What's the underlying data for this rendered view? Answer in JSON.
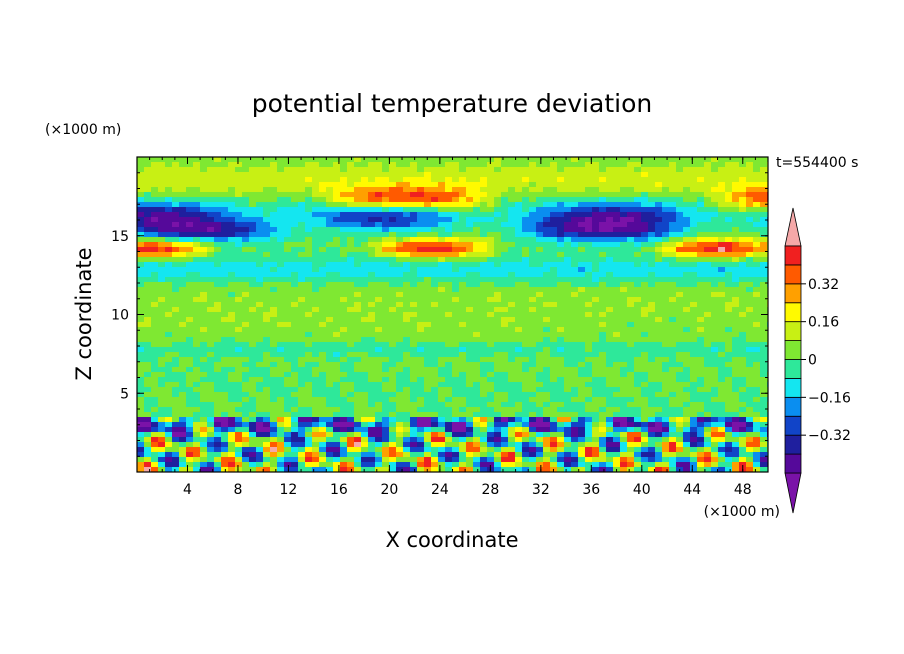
{
  "chart_data": {
    "type": "heatmap",
    "title": "potential temperature deviation",
    "xlabel": "X coordinate",
    "ylabel": "Z coordinate",
    "x_unit": "(×1000 m)",
    "y_unit": "(×1000 m)",
    "time_label": "t=554400 s",
    "xlim": [
      0,
      50
    ],
    "ylim": [
      0,
      20
    ],
    "x_ticks": [
      "4",
      "8",
      "12",
      "16",
      "20",
      "24",
      "28",
      "32",
      "36",
      "40",
      "44",
      "48"
    ],
    "x_tick_values": [
      4,
      8,
      12,
      16,
      20,
      24,
      28,
      32,
      36,
      40,
      44,
      48
    ],
    "y_ticks": [
      "5",
      "10",
      "15"
    ],
    "y_tick_values": [
      5,
      10,
      15
    ],
    "colorbar": {
      "levels": [
        -0.48,
        -0.4,
        -0.32,
        -0.24,
        -0.16,
        -0.08,
        0,
        0.08,
        0.16,
        0.24,
        0.32,
        0.4,
        0.48
      ],
      "colors": [
        "#7a12a8",
        "#55099a",
        "#1f1f9e",
        "#1144c8",
        "#0a8ef0",
        "#14e6f0",
        "#2ee89a",
        "#7fe832",
        "#c8f014",
        "#fffa00",
        "#ffa000",
        "#ff5a00",
        "#f02020",
        "#f5a8a8"
      ],
      "labels": [
        "0.32",
        "0.16",
        "0",
        "−0.16",
        "−0.32"
      ],
      "label_values": [
        0.32,
        0.16,
        0,
        -0.16,
        -0.32
      ]
    }
  }
}
